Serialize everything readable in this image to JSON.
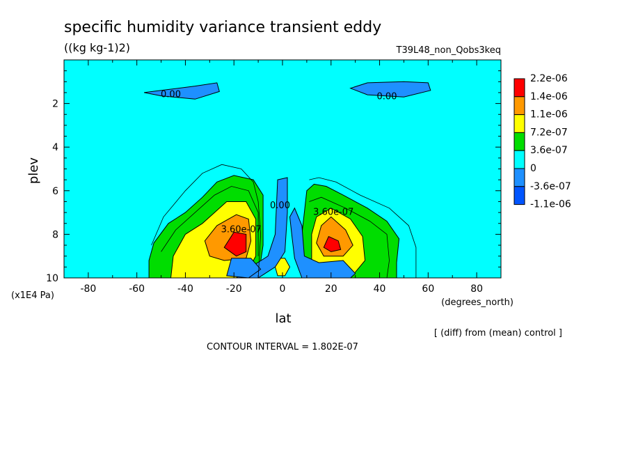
{
  "chart_data": {
    "type": "heatmap",
    "title": "specific humidity variance transient eddy",
    "units": "((kg kg-1)2)",
    "run_label": "T39L48_non_Qobs3keq",
    "xlabel": "lat",
    "x_units": "(degrees_north)",
    "ylabel": "plev",
    "y_units": "(x1E4 Pa)",
    "xlim": [
      -90,
      90
    ],
    "ylim": [
      10,
      0
    ],
    "x_ticks": [
      -80,
      -60,
      -40,
      -20,
      0,
      20,
      40,
      60,
      80
    ],
    "y_ticks": [
      2,
      4,
      6,
      8,
      10
    ],
    "contour_interval_text": "CONTOUR INTERVAL = 1.802E-07",
    "note": "[ (diff) from (mean) control ]",
    "colorbar": [
      {
        "label": "2.2e-06",
        "color": "#ff0000"
      },
      {
        "label": "1.4e-06",
        "color": "#ff9900"
      },
      {
        "label": "1.1e-06",
        "color": "#ffff00"
      },
      {
        "label": "7.2e-07",
        "color": "#00dd00"
      },
      {
        "label": "3.6e-07",
        "color": "#00ffff"
      },
      {
        "label": "0",
        "color": "#1e90ff"
      },
      {
        "label": "-3.6e-07",
        "color": "#0055ff"
      },
      {
        "label": "-1.1e-06",
        "color": ""
      }
    ],
    "contour_labels": [
      {
        "text": "0.00",
        "lat": -46,
        "plev": 1.6
      },
      {
        "text": "0.00",
        "lat": 43,
        "plev": 1.7
      },
      {
        "text": "3.60e-07",
        "lat": 21,
        "plev": 7.0
      },
      {
        "text": "0.00",
        "lat": -1,
        "plev": 6.7
      },
      {
        "text": "3.60e-07",
        "lat": -17,
        "plev": 7.8
      }
    ],
    "regions": [
      {
        "name": "neg-top-left",
        "color": "#1e90ff",
        "points": [
          [
            -57,
            1.5
          ],
          [
            -50,
            1.4
          ],
          [
            -36,
            1.2
          ],
          [
            -27,
            1.05
          ],
          [
            -26,
            1.45
          ],
          [
            -36,
            1.8
          ],
          [
            -50,
            1.65
          ]
        ]
      },
      {
        "name": "neg-top-right",
        "color": "#1e90ff",
        "points": [
          [
            28,
            1.3
          ],
          [
            35,
            1.05
          ],
          [
            50,
            1.0
          ],
          [
            60,
            1.05
          ],
          [
            61,
            1.4
          ],
          [
            50,
            1.7
          ],
          [
            35,
            1.6
          ]
        ]
      },
      {
        "name": "green-left",
        "color": "#00dd00",
        "points": [
          [
            -55,
            9.2
          ],
          [
            -53,
            8.4
          ],
          [
            -47,
            7.5
          ],
          [
            -40,
            7.0
          ],
          [
            -33,
            6.3
          ],
          [
            -27,
            5.6
          ],
          [
            -20,
            5.3
          ],
          [
            -12,
            5.5
          ],
          [
            -8,
            6.2
          ],
          [
            -8,
            8.5
          ],
          [
            -10,
            10
          ],
          [
            -55,
            10
          ]
        ]
      },
      {
        "name": "green-right",
        "color": "#00dd00",
        "points": [
          [
            10,
            6.0
          ],
          [
            13,
            5.7
          ],
          [
            18,
            5.8
          ],
          [
            25,
            6.2
          ],
          [
            35,
            6.8
          ],
          [
            43,
            7.4
          ],
          [
            48,
            8.2
          ],
          [
            47,
            9.3
          ],
          [
            47,
            10
          ],
          [
            8,
            10
          ],
          [
            8,
            8
          ]
        ]
      },
      {
        "name": "yellow-left",
        "color": "#ffff00",
        "points": [
          [
            -46,
            10
          ],
          [
            -45,
            9.0
          ],
          [
            -40,
            8.0
          ],
          [
            -33,
            7.5
          ],
          [
            -23,
            6.5
          ],
          [
            -15,
            6.5
          ],
          [
            -11,
            7.3
          ],
          [
            -11,
            9.0
          ],
          [
            -16,
            10
          ]
        ]
      },
      {
        "name": "yellow-right",
        "color": "#ffff00",
        "points": [
          [
            12,
            10
          ],
          [
            12,
            8.0
          ],
          [
            14,
            7.2
          ],
          [
            20,
            6.8
          ],
          [
            28,
            7.3
          ],
          [
            33,
            8.1
          ],
          [
            34,
            9.2
          ],
          [
            28,
            10
          ]
        ]
      },
      {
        "name": "yellow-center",
        "color": "#ffff00",
        "points": [
          [
            -3,
            9.5
          ],
          [
            -2,
            9.1
          ],
          [
            1,
            9.1
          ],
          [
            3,
            9.5
          ],
          [
            1,
            9.9
          ],
          [
            -2,
            9.9
          ]
        ]
      },
      {
        "name": "orange-left",
        "color": "#ff9900",
        "points": [
          [
            -32,
            8.3
          ],
          [
            -27,
            7.6
          ],
          [
            -19,
            7.1
          ],
          [
            -14,
            7.3
          ],
          [
            -13,
            8.3
          ],
          [
            -15,
            9.1
          ],
          [
            -24,
            9.2
          ],
          [
            -30,
            9.0
          ]
        ]
      },
      {
        "name": "orange-right",
        "color": "#ff9900",
        "points": [
          [
            14,
            8.4
          ],
          [
            16,
            7.6
          ],
          [
            20,
            7.2
          ],
          [
            26,
            7.8
          ],
          [
            29,
            8.5
          ],
          [
            25,
            9.0
          ],
          [
            17,
            9.0
          ]
        ]
      },
      {
        "name": "red-left",
        "color": "#ff0000",
        "points": [
          [
            -24,
            8.6
          ],
          [
            -20,
            7.9
          ],
          [
            -15,
            8.0
          ],
          [
            -15,
            8.8
          ],
          [
            -19,
            9.0
          ]
        ]
      },
      {
        "name": "red-right",
        "color": "#ff0000",
        "points": [
          [
            17,
            8.6
          ],
          [
            19,
            8.1
          ],
          [
            23,
            8.3
          ],
          [
            24,
            8.7
          ],
          [
            20,
            8.8
          ]
        ]
      },
      {
        "name": "neg-center-stalk",
        "color": "#1e90ff",
        "points": [
          [
            -2,
            5.5
          ],
          [
            2,
            5.4
          ],
          [
            2,
            7.0
          ],
          [
            1,
            8.8
          ],
          [
            -3,
            9.5
          ],
          [
            -10,
            10
          ],
          [
            -19,
            10
          ],
          [
            -13,
            9.5
          ],
          [
            -6,
            9.0
          ],
          [
            -3,
            8.0
          ]
        ]
      },
      {
        "name": "neg-center-right",
        "color": "#1e90ff",
        "points": [
          [
            3,
            7.2
          ],
          [
            5,
            6.8
          ],
          [
            8,
            7.6
          ],
          [
            9,
            9.0
          ],
          [
            15,
            9.3
          ],
          [
            25,
            9.2
          ],
          [
            30,
            9.8
          ],
          [
            28,
            10
          ],
          [
            8,
            10
          ],
          [
            5,
            9.1
          ],
          [
            4,
            8.2
          ]
        ]
      },
      {
        "name": "neg-bottom-left",
        "color": "#1e90ff",
        "points": [
          [
            -23,
            9.9
          ],
          [
            -21,
            9.1
          ],
          [
            -13,
            9.1
          ],
          [
            -9,
            9.6
          ],
          [
            -14,
            10
          ]
        ]
      }
    ],
    "contour_lines": [
      {
        "name": "outer-left",
        "points": [
          [
            -54,
            8.5
          ],
          [
            -49,
            7.2
          ],
          [
            -40,
            6.0
          ],
          [
            -33,
            5.2
          ],
          [
            -25,
            4.8
          ],
          [
            -17,
            5.0
          ],
          [
            -12,
            5.6
          ],
          [
            -10,
            6.5
          ],
          [
            -9,
            8.0
          ],
          [
            -10,
            10
          ]
        ]
      },
      {
        "name": "outer-right",
        "points": [
          [
            11,
            5.5
          ],
          [
            15,
            5.4
          ],
          [
            22,
            5.6
          ],
          [
            32,
            6.2
          ],
          [
            44,
            6.8
          ],
          [
            52,
            7.6
          ],
          [
            55,
            8.6
          ],
          [
            55,
            10
          ]
        ]
      },
      {
        "name": "inner-left",
        "points": [
          [
            -50,
            8.8
          ],
          [
            -44,
            7.8
          ],
          [
            -36,
            7.0
          ],
          [
            -28,
            6.2
          ],
          [
            -21,
            5.8
          ],
          [
            -14,
            6.0
          ],
          [
            -10,
            7.0
          ],
          [
            -10,
            9.0
          ]
        ]
      },
      {
        "name": "inner-right",
        "points": [
          [
            11,
            6.5
          ],
          [
            16,
            6.3
          ],
          [
            26,
            6.8
          ],
          [
            36,
            7.4
          ],
          [
            43,
            8.0
          ],
          [
            44,
            9.2
          ],
          [
            43,
            10
          ]
        ]
      }
    ]
  }
}
